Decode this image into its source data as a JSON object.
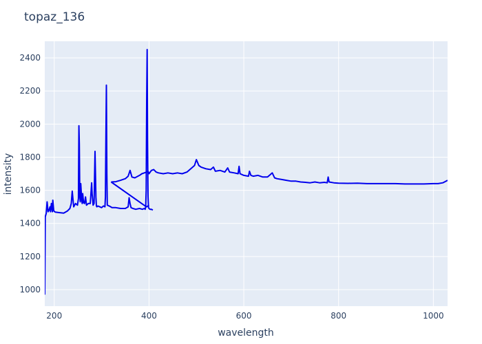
{
  "chart_data": {
    "type": "line",
    "title": "topaz_136",
    "xlabel": "wavelength",
    "ylabel": "intensity",
    "xlim": [
      180,
      1030
    ],
    "ylim": [
      900,
      2500
    ],
    "x_ticks": [
      200,
      400,
      600,
      800,
      1000
    ],
    "y_ticks": [
      1000,
      1200,
      1400,
      1600,
      1800,
      2000,
      2200,
      2400
    ],
    "grid": true,
    "legend": "none",
    "colors": {
      "line": "#0000ee",
      "plot_bg": "#e5ecf6",
      "grid": "#ffffff",
      "text": "#2a3f5f"
    },
    "series": [
      {
        "x": [
          180,
          181,
          183,
          185,
          187,
          189,
          191,
          192,
          194,
          196,
          197,
          199,
          202,
          210,
          220,
          228,
          233,
          236,
          238,
          241,
          245,
          249,
          251,
          252,
          253,
          254,
          255,
          256,
          258,
          259,
          260,
          262,
          264,
          266,
          268,
          272,
          276,
          279,
          280,
          282,
          284,
          286,
          288,
          289,
          290,
          292,
          296,
          300,
          304,
          307,
          308,
          309,
          310,
          311,
          312,
          316,
          322,
          330,
          340,
          350,
          356,
          358,
          360,
          362,
          366,
          372,
          380,
          386,
          390,
          392,
          393,
          394,
          395,
          396,
          397,
          398,
          399,
          400,
          402,
          405,
          408
        ],
        "y": [
          970,
          1440,
          1460,
          1530,
          1470,
          1480,
          1500,
          1470,
          1520,
          1470,
          1540,
          1475,
          1468,
          1465,
          1462,
          1475,
          1490,
          1520,
          1595,
          1500,
          1520,
          1510,
          1550,
          1990,
          1880,
          1560,
          1530,
          1640,
          1540,
          1520,
          1580,
          1525,
          1520,
          1560,
          1510,
          1520,
          1520,
          1645,
          1580,
          1510,
          1520,
          1835,
          1560,
          1505,
          1500,
          1505,
          1500,
          1495,
          1505,
          1500,
          1560,
          1920,
          2235,
          1700,
          1510,
          1505,
          1495,
          1495,
          1490,
          1490,
          1500,
          1555,
          1520,
          1495,
          1490,
          1485,
          1490,
          1485,
          1490,
          1485,
          1500,
          1600,
          2130,
          2450,
          1900,
          1560,
          1495,
          1490,
          1485,
          1485,
          1480
        ]
      },
      {
        "x": [
          400,
          395,
          392,
          320
        ],
        "y": [
          1510,
          1500,
          1505,
          1650
        ]
      },
      {
        "x": [
          320,
          330,
          340,
          350,
          356,
          360,
          364,
          370,
          380,
          385,
          390,
          395,
          398,
          400,
          405,
          410,
          415,
          420,
          430,
          440,
          450,
          460,
          470,
          480,
          490,
          496,
          500,
          505,
          510,
          520,
          530,
          536,
          540,
          550,
          560,
          566,
          570,
          580,
          588,
          590,
          592,
          600,
          610,
          612,
          615,
          620,
          630,
          640,
          650,
          656,
          660,
          665,
          670,
          680,
          690,
          700,
          710,
          720,
          730,
          740,
          750,
          760,
          770,
          776,
          778,
          780,
          790,
          800,
          820,
          840,
          860,
          880,
          900,
          920,
          940,
          960,
          980,
          1000,
          1010,
          1020,
          1030
        ],
        "y": [
          1650,
          1652,
          1660,
          1670,
          1685,
          1720,
          1680,
          1675,
          1690,
          1700,
          1705,
          1710,
          1715,
          1700,
          1720,
          1725,
          1710,
          1705,
          1700,
          1705,
          1700,
          1705,
          1700,
          1710,
          1735,
          1750,
          1785,
          1750,
          1740,
          1730,
          1725,
          1740,
          1715,
          1720,
          1710,
          1735,
          1710,
          1705,
          1700,
          1745,
          1700,
          1690,
          1685,
          1715,
          1690,
          1685,
          1690,
          1680,
          1680,
          1695,
          1705,
          1675,
          1670,
          1665,
          1660,
          1655,
          1655,
          1650,
          1648,
          1645,
          1650,
          1645,
          1648,
          1645,
          1680,
          1650,
          1645,
          1643,
          1642,
          1643,
          1640,
          1640,
          1640,
          1640,
          1638,
          1638,
          1638,
          1640,
          1640,
          1645,
          1660
        ]
      }
    ]
  }
}
